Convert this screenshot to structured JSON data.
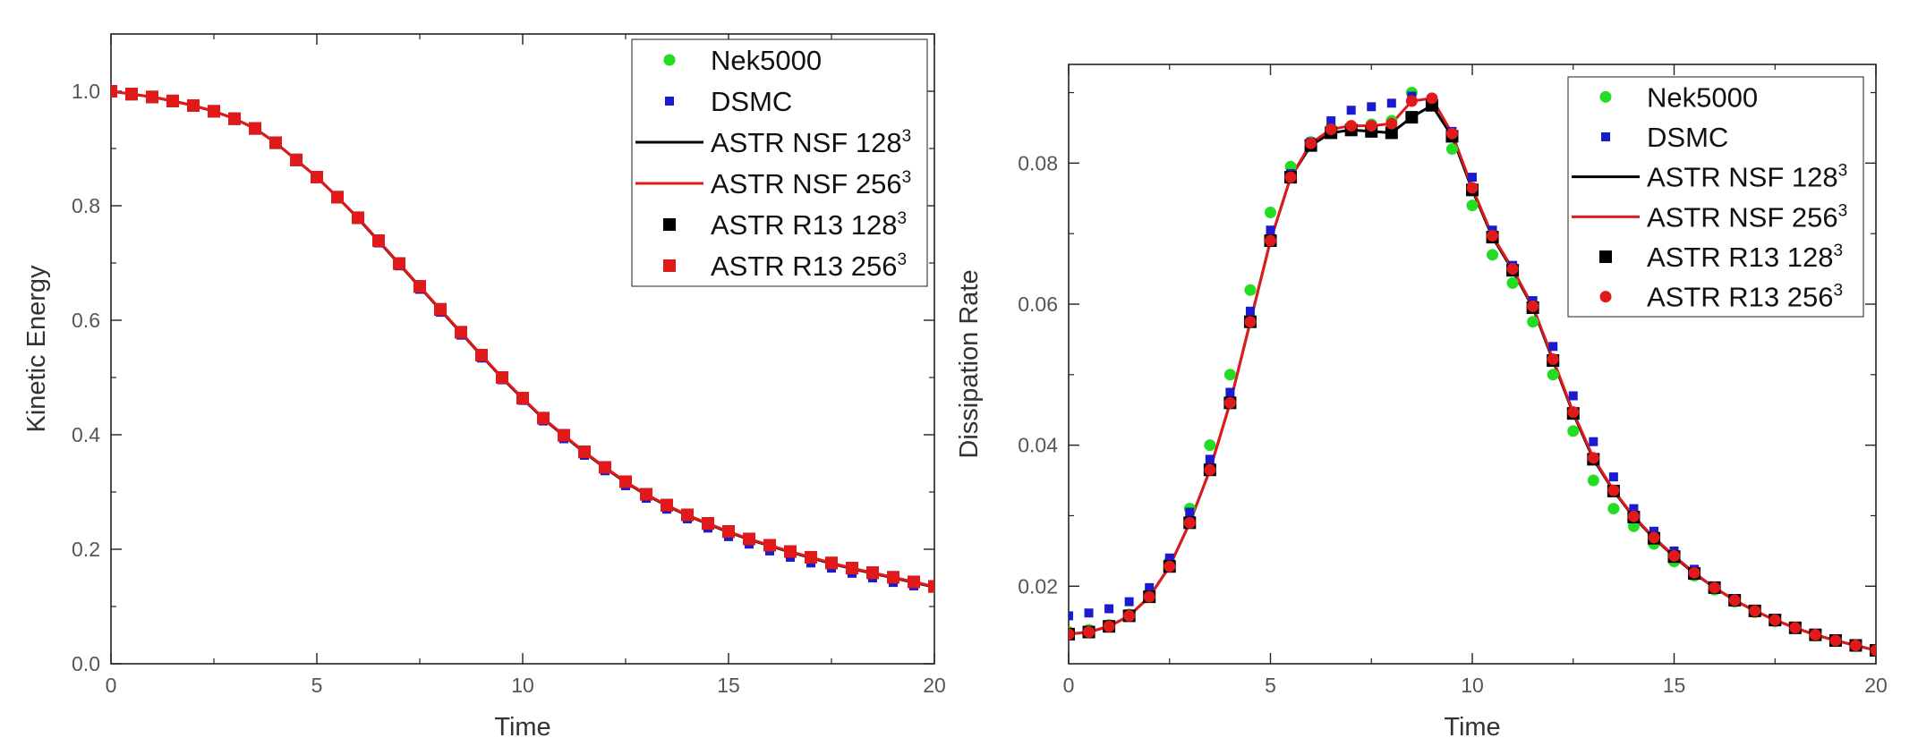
{
  "colors": {
    "nek5000": "#22dd22",
    "dsmc": "#1a1ad0",
    "nsf128": "#000000",
    "nsf256": "#e01a1a",
    "r13_128": "#000000",
    "r13_256": "#e01a1a"
  },
  "chart_data": [
    {
      "type": "line",
      "xlabel": "Time",
      "ylabel": "Kinetic Energy",
      "xlim": [
        0,
        20
      ],
      "ylim": [
        0,
        1.1
      ],
      "xticks": [
        "0",
        "5",
        "10",
        "15",
        "20"
      ],
      "yticks": [
        "0.0",
        "0.2",
        "0.4",
        "0.6",
        "0.8",
        "1.0"
      ],
      "legend_position": "top-right",
      "x": [
        0,
        0.5,
        1,
        1.5,
        2,
        2.5,
        3,
        3.5,
        4,
        4.5,
        5,
        5.5,
        6,
        6.5,
        7,
        7.5,
        8,
        8.5,
        9,
        9.5,
        10,
        10.5,
        11,
        11.5,
        12,
        12.5,
        13,
        13.5,
        14,
        14.5,
        15,
        15.5,
        16,
        16.5,
        17,
        17.5,
        18,
        18.5,
        19,
        19.5,
        20
      ],
      "series": [
        {
          "name": "Nek5000",
          "marker": "circle",
          "color_key": "nek5000",
          "values": [
            1.0,
            0.995,
            0.99,
            0.983,
            0.975,
            0.965,
            0.952,
            0.935,
            0.91,
            0.88,
            0.85,
            0.815,
            0.78,
            0.74,
            0.7,
            0.66,
            0.62,
            0.58,
            0.54,
            0.5,
            0.465,
            0.43,
            0.4,
            0.37,
            0.343,
            0.318,
            0.296,
            0.277,
            0.26,
            0.245,
            0.231,
            0.218,
            0.207,
            0.196,
            0.186,
            0.176,
            0.167,
            0.159,
            0.151,
            0.143,
            0.135
          ]
        },
        {
          "name": "DSMC",
          "marker": "square-small",
          "color_key": "dsmc",
          "values": [
            1.0,
            0.996,
            0.99,
            0.984,
            0.976,
            0.966,
            0.953,
            0.936,
            0.912,
            0.882,
            0.848,
            0.812,
            0.776,
            0.735,
            0.695,
            0.654,
            0.614,
            0.574,
            0.534,
            0.496,
            0.46,
            0.424,
            0.393,
            0.364,
            0.337,
            0.311,
            0.289,
            0.27,
            0.253,
            0.237,
            0.222,
            0.209,
            0.197,
            0.186,
            0.176,
            0.167,
            0.158,
            0.15,
            0.142,
            0.136,
            0.133
          ]
        },
        {
          "name": "ASTR NSF 128",
          "sup": "3",
          "marker": "line",
          "color_key": "nsf128",
          "values": [
            1.0,
            0.995,
            0.99,
            0.983,
            0.975,
            0.965,
            0.952,
            0.935,
            0.91,
            0.88,
            0.85,
            0.815,
            0.778,
            0.738,
            0.698,
            0.658,
            0.618,
            0.578,
            0.538,
            0.499,
            0.463,
            0.428,
            0.398,
            0.369,
            0.342,
            0.317,
            0.295,
            0.276,
            0.259,
            0.244,
            0.23,
            0.217,
            0.206,
            0.195,
            0.185,
            0.175,
            0.166,
            0.158,
            0.15,
            0.142,
            0.134
          ]
        },
        {
          "name": "ASTR NSF 256",
          "sup": "3",
          "marker": "line",
          "color_key": "nsf256",
          "values": [
            1.0,
            0.995,
            0.99,
            0.983,
            0.975,
            0.965,
            0.952,
            0.935,
            0.91,
            0.88,
            0.85,
            0.815,
            0.779,
            0.739,
            0.699,
            0.659,
            0.619,
            0.579,
            0.539,
            0.5,
            0.464,
            0.429,
            0.399,
            0.37,
            0.343,
            0.318,
            0.296,
            0.277,
            0.26,
            0.245,
            0.231,
            0.218,
            0.207,
            0.196,
            0.186,
            0.176,
            0.167,
            0.159,
            0.151,
            0.143,
            0.135
          ]
        },
        {
          "name": "ASTR R13 128",
          "sup": "3",
          "marker": "square",
          "color_key": "r13_128",
          "values": [
            1.0,
            0.995,
            0.99,
            0.983,
            0.975,
            0.965,
            0.952,
            0.935,
            0.91,
            0.88,
            0.85,
            0.815,
            0.779,
            0.739,
            0.699,
            0.659,
            0.619,
            0.579,
            0.539,
            0.5,
            0.464,
            0.429,
            0.399,
            0.37,
            0.343,
            0.318,
            0.296,
            0.277,
            0.26,
            0.245,
            0.231,
            0.218,
            0.207,
            0.196,
            0.186,
            0.176,
            0.167,
            0.159,
            0.151,
            0.143,
            0.135
          ]
        },
        {
          "name": "ASTR R13 256",
          "sup": "3",
          "marker": "square",
          "color_key": "r13_256",
          "values": [
            1.0,
            0.995,
            0.99,
            0.983,
            0.975,
            0.965,
            0.952,
            0.935,
            0.91,
            0.88,
            0.85,
            0.815,
            0.779,
            0.739,
            0.699,
            0.659,
            0.619,
            0.579,
            0.539,
            0.5,
            0.464,
            0.429,
            0.399,
            0.37,
            0.343,
            0.318,
            0.296,
            0.277,
            0.26,
            0.245,
            0.231,
            0.218,
            0.207,
            0.196,
            0.186,
            0.176,
            0.167,
            0.159,
            0.151,
            0.143,
            0.135
          ]
        }
      ]
    },
    {
      "type": "line",
      "xlabel": "Time",
      "ylabel": "Dissipation Rate",
      "xlim": [
        0,
        20
      ],
      "ylim": [
        0.009,
        0.094
      ],
      "xticks": [
        "0",
        "5",
        "10",
        "15",
        "20"
      ],
      "yticks": [
        "0.02",
        "0.04",
        "0.06",
        "0.08"
      ],
      "ytick_values": [
        0.02,
        0.04,
        0.06,
        0.08
      ],
      "legend_position": "top-right",
      "x": [
        0,
        0.5,
        1,
        1.5,
        2,
        2.5,
        3,
        3.5,
        4,
        4.5,
        5,
        5.5,
        6,
        6.5,
        7,
        7.5,
        8,
        8.5,
        9,
        9.5,
        10,
        10.5,
        11,
        11.5,
        12,
        12.5,
        13,
        13.5,
        14,
        14.5,
        15,
        15.5,
        16,
        16.5,
        17,
        17.5,
        18,
        18.5,
        19,
        19.5,
        20
      ],
      "series": [
        {
          "name": "Nek5000",
          "marker": "circle",
          "color_key": "nek5000",
          "values": [
            0.0135,
            0.0138,
            0.0145,
            0.016,
            0.019,
            0.0235,
            0.031,
            0.04,
            0.05,
            0.062,
            0.073,
            0.0795,
            0.083,
            0.085,
            0.085,
            0.0855,
            0.086,
            0.09,
            0.0885,
            0.082,
            0.074,
            0.067,
            0.063,
            0.0575,
            0.05,
            0.042,
            0.035,
            0.031,
            0.0285,
            0.026,
            0.0235,
            0.0215,
            0.0195,
            0.0178,
            0.0163,
            0.015,
            0.014,
            0.013,
            0.0122,
            0.0115,
            0.0108
          ]
        },
        {
          "name": "DSMC",
          "marker": "square-small",
          "color_key": "dsmc",
          "values": [
            0.0158,
            0.0162,
            0.0168,
            0.0178,
            0.0198,
            0.024,
            0.0305,
            0.038,
            0.0475,
            0.059,
            0.0705,
            0.0785,
            0.083,
            0.086,
            0.0875,
            0.088,
            0.0885,
            0.0895,
            0.0885,
            0.0845,
            0.078,
            0.0705,
            0.0655,
            0.0605,
            0.054,
            0.047,
            0.0405,
            0.0355,
            0.031,
            0.0278,
            0.025,
            0.0224,
            0.02,
            0.0182,
            0.0167,
            0.0154,
            0.0142,
            0.0132,
            0.0124,
            0.0117,
            0.011
          ]
        },
        {
          "name": "ASTR NSF 128",
          "sup": "3",
          "marker": "line",
          "color_key": "nsf128",
          "values": [
            0.0132,
            0.0135,
            0.0143,
            0.0158,
            0.0185,
            0.0228,
            0.029,
            0.0365,
            0.046,
            0.0575,
            0.069,
            0.078,
            0.0825,
            0.0843,
            0.0847,
            0.0845,
            0.0843,
            0.0865,
            0.0882,
            0.0838,
            0.0762,
            0.0695,
            0.0648,
            0.0595,
            0.052,
            0.0445,
            0.038,
            0.0335,
            0.0298,
            0.0268,
            0.0242,
            0.0218,
            0.0198,
            0.018,
            0.0165,
            0.0152,
            0.0141,
            0.0131,
            0.0123,
            0.0116,
            0.0109
          ]
        },
        {
          "name": "ASTR NSF 256",
          "sup": "3",
          "marker": "line",
          "color_key": "nsf256",
          "values": [
            0.0132,
            0.0135,
            0.0143,
            0.0158,
            0.0185,
            0.0228,
            0.029,
            0.0365,
            0.046,
            0.0575,
            0.069,
            0.078,
            0.0828,
            0.0848,
            0.0853,
            0.0853,
            0.0856,
            0.0888,
            0.0892,
            0.0842,
            0.0765,
            0.0697,
            0.065,
            0.0597,
            0.0522,
            0.0447,
            0.0382,
            0.0336,
            0.0299,
            0.0269,
            0.0243,
            0.0219,
            0.0198,
            0.018,
            0.0165,
            0.0152,
            0.0141,
            0.0131,
            0.0123,
            0.0116,
            0.0109
          ]
        },
        {
          "name": "ASTR R13 128",
          "sup": "3",
          "marker": "square",
          "color_key": "r13_128",
          "values": [
            0.0132,
            0.0135,
            0.0143,
            0.0158,
            0.0185,
            0.0228,
            0.029,
            0.0365,
            0.046,
            0.0575,
            0.069,
            0.078,
            0.0825,
            0.0843,
            0.0847,
            0.0845,
            0.0843,
            0.0865,
            0.0882,
            0.0838,
            0.0762,
            0.0695,
            0.0648,
            0.0595,
            0.052,
            0.0445,
            0.038,
            0.0335,
            0.0298,
            0.0268,
            0.0242,
            0.0218,
            0.0198,
            0.018,
            0.0165,
            0.0152,
            0.0141,
            0.0131,
            0.0123,
            0.0116,
            0.0109
          ]
        },
        {
          "name": "ASTR R13 256",
          "sup": "3",
          "marker": "circle",
          "color_key": "r13_256",
          "values": [
            0.0132,
            0.0135,
            0.0143,
            0.0158,
            0.0185,
            0.0228,
            0.029,
            0.0365,
            0.046,
            0.0575,
            0.069,
            0.078,
            0.0828,
            0.0848,
            0.0853,
            0.0853,
            0.0856,
            0.0888,
            0.0892,
            0.0842,
            0.0765,
            0.0697,
            0.065,
            0.0597,
            0.0522,
            0.0447,
            0.0382,
            0.0336,
            0.0299,
            0.0269,
            0.0243,
            0.0219,
            0.0198,
            0.018,
            0.0165,
            0.0152,
            0.0141,
            0.0131,
            0.0123,
            0.0116,
            0.0109
          ]
        }
      ]
    }
  ]
}
